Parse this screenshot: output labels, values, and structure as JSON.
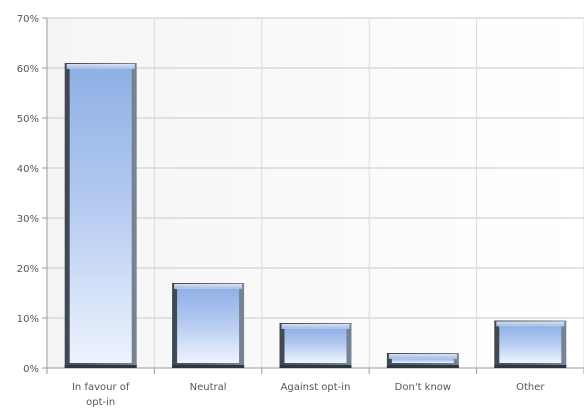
{
  "chart_data": {
    "type": "bar",
    "categories": [
      "In favour of opt-in",
      "Neutral",
      "Against opt-in",
      "Don't know",
      "Other"
    ],
    "category_lines": [
      [
        "In favour of",
        "opt-in"
      ],
      [
        "Neutral"
      ],
      [
        "Against opt-in"
      ],
      [
        "Don't know"
      ],
      [
        "Other"
      ]
    ],
    "values": [
      61,
      17,
      9,
      3,
      9.5
    ],
    "value_unit": "%",
    "title": "",
    "xlabel": "",
    "ylabel": "",
    "ylim": [
      0,
      70
    ],
    "yticks": [
      0,
      10,
      20,
      30,
      40,
      50,
      60,
      70
    ],
    "ytick_labels": [
      "0%",
      "10%",
      "20%",
      "30%",
      "40%",
      "50%",
      "60%",
      "70%"
    ],
    "grid": true,
    "legend": false,
    "bar_style": "3d-beveled",
    "colors": {
      "bar_top": "#8fb0e6",
      "bar_mid": "#b9cdf0",
      "bar_bottom": "#eaf1fd",
      "bar_edge": "#5a6472",
      "grid": "#c8c8c8",
      "plot_bg_left": "#f7f7f7",
      "plot_bg_right": "#ffffff",
      "axis_text": "#555555"
    }
  }
}
